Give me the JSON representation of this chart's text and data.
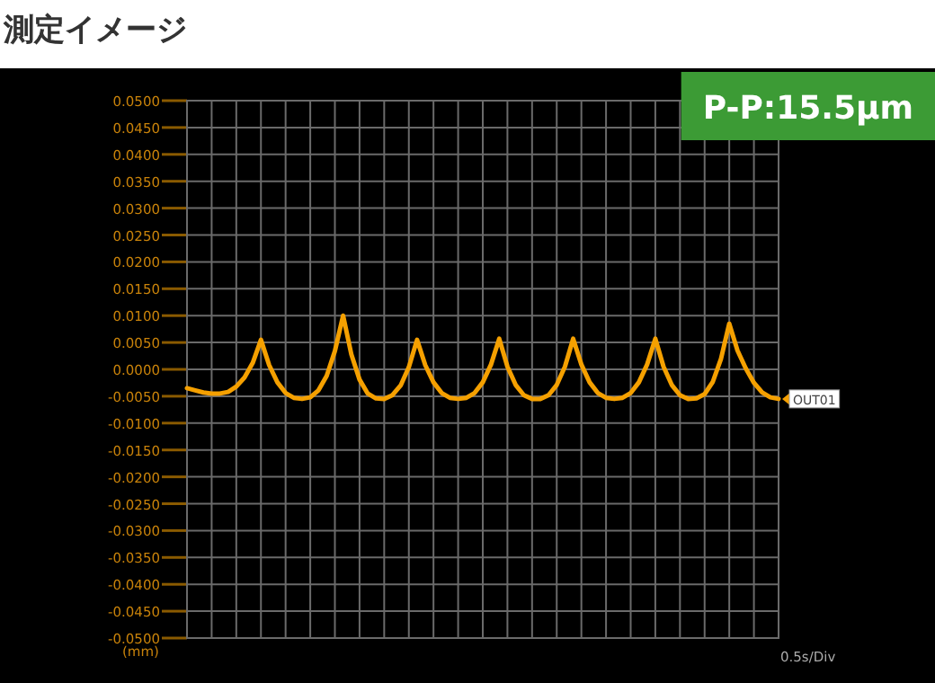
{
  "chart_data": {
    "type": "line",
    "title": "測定イメージ",
    "ylabel": "(mm)",
    "xlabel": "0.5s/Div",
    "annotations": [
      "P-P:15.5μm"
    ],
    "categories": [
      null,
      null,
      null,
      null,
      null,
      null,
      null,
      null,
      null,
      null,
      null,
      null,
      null,
      null,
      null,
      null,
      null,
      null,
      null,
      null,
      null,
      null,
      null,
      null,
      null,
      null,
      null,
      null,
      null,
      null,
      null,
      null,
      null,
      null,
      null,
      null,
      null,
      null,
      null,
      null,
      null,
      null,
      null,
      null,
      null,
      null,
      null,
      null,
      null,
      null,
      null,
      null,
      null,
      null,
      null,
      null,
      null,
      null,
      null,
      null,
      null,
      null,
      null,
      null,
      null,
      null,
      null,
      null,
      null,
      null,
      null,
      null,
      null
    ],
    "series": [
      {
        "name": "OUT01",
        "color": "#f5a000",
        "values": [
          -0.0035,
          -0.0039,
          -0.0043,
          -0.0045,
          -0.0045,
          -0.0042,
          -0.0032,
          -0.0015,
          0.0012,
          0.0055,
          0.0008,
          -0.0024,
          -0.0044,
          -0.0053,
          -0.0055,
          -0.0052,
          -0.0039,
          -0.0012,
          0.0034,
          0.01,
          0.0028,
          -0.0019,
          -0.0045,
          -0.0054,
          -0.0055,
          -0.0048,
          -0.003,
          0.0004,
          0.0055,
          0.0008,
          -0.0024,
          -0.0044,
          -0.0053,
          -0.0055,
          -0.0053,
          -0.0044,
          -0.0024,
          0.0009,
          0.0057,
          0.0005,
          -0.0029,
          -0.0048,
          -0.0055,
          -0.0055,
          -0.0048,
          -0.0029,
          0.0005,
          0.0057,
          0.0009,
          -0.0024,
          -0.0044,
          -0.0053,
          -0.0055,
          -0.0053,
          -0.0044,
          -0.0024,
          0.0009,
          0.0057,
          0.0005,
          -0.0029,
          -0.0048,
          -0.0055,
          -0.0054,
          -0.0046,
          -0.0023,
          0.002,
          0.0085,
          0.0035,
          0.0002,
          -0.0025,
          -0.0043,
          -0.0052,
          -0.0055
        ]
      }
    ],
    "ylim": [
      -0.05,
      0.05
    ],
    "yticks": [
      {
        "value": 0.05,
        "label": "0.0500"
      },
      {
        "value": 0.045,
        "label": "0.0450"
      },
      {
        "value": 0.04,
        "label": "0.0400"
      },
      {
        "value": 0.035,
        "label": "0.0350"
      },
      {
        "value": 0.03,
        "label": "0.0300"
      },
      {
        "value": 0.025,
        "label": "0.0250"
      },
      {
        "value": 0.02,
        "label": "0.0200"
      },
      {
        "value": 0.015,
        "label": "0.0150"
      },
      {
        "value": 0.01,
        "label": "0.0100"
      },
      {
        "value": 0.005,
        "label": "0.0050"
      },
      {
        "value": 0,
        "label": "0.0000"
      },
      {
        "value": -0.005,
        "label": "-0.0050"
      },
      {
        "value": -0.01,
        "label": "-0.0100"
      },
      {
        "value": -0.015,
        "label": "-0.0150"
      },
      {
        "value": -0.02,
        "label": "-0.0200"
      },
      {
        "value": -0.025,
        "label": "-0.0250"
      },
      {
        "value": -0.03,
        "label": "-0.0300"
      },
      {
        "value": -0.035,
        "label": "-0.0350"
      },
      {
        "value": -0.04,
        "label": "-0.0400"
      },
      {
        "value": -0.045,
        "label": "-0.0450"
      },
      {
        "value": -0.05,
        "label": "-0.0500"
      }
    ],
    "grid": true,
    "tick_labels": "y"
  }
}
